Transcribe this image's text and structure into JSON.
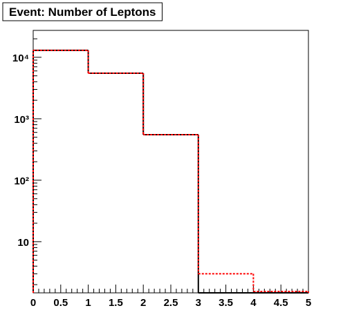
{
  "chart_data": {
    "type": "histogram",
    "title": "Event: Number of Leptons",
    "bins": [
      0,
      1,
      2,
      3,
      4,
      5
    ],
    "series": [
      {
        "color": "#000000",
        "line_style": "solid",
        "values": [
          13000,
          5500,
          550,
          0,
          0
        ]
      },
      {
        "color": "#ff0000",
        "line_style": "dashed",
        "values": [
          13000,
          5500,
          550,
          3,
          1.55
        ]
      }
    ],
    "xlim": [
      0,
      5
    ],
    "xticks": [
      0,
      0.5,
      1,
      1.5,
      2,
      2.5,
      3,
      3.5,
      4,
      4.5,
      5
    ],
    "ylim": [
      1.47,
      27400
    ],
    "log_y": true,
    "yticks": [
      10,
      {
        "value": 100,
        "label": "10²"
      },
      {
        "value": 1000,
        "label": "10³"
      },
      {
        "value": 10000,
        "label": "10⁴"
      }
    ]
  }
}
